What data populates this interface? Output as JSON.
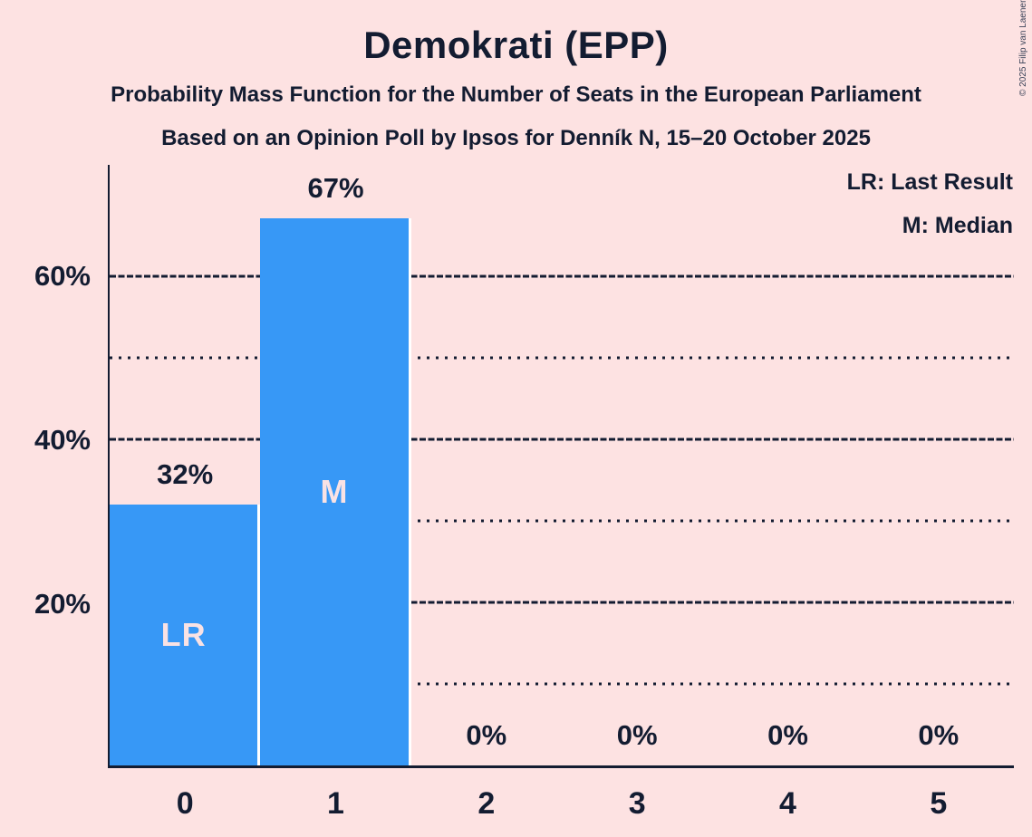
{
  "title": "Demokrati (EPP)",
  "subtitle_line1": "Probability Mass Function for the Number of Seats in the European Parliament",
  "subtitle_line2": "Based on an Opinion Poll by Ipsos for Denník N, 15–20 October 2025",
  "copyright": "© 2025 Filip van Laenen",
  "legend": {
    "lr_label": "LR: Last Result",
    "m_label": "M: Median"
  },
  "colors": {
    "background": "#fde2e2",
    "bar": "#3798f6",
    "text": "#131c31",
    "bar_annotation": "#f9e2e4",
    "bar_divider": "#ffffff"
  },
  "chart_data": {
    "type": "bar",
    "title": "Demokrati (EPP)",
    "xlabel": "",
    "ylabel": "",
    "categories": [
      "0",
      "1",
      "2",
      "3",
      "4",
      "5"
    ],
    "values": [
      32,
      67,
      0,
      0,
      0,
      0
    ],
    "value_labels": [
      "32%",
      "67%",
      "0%",
      "0%",
      "0%",
      "0%"
    ],
    "bar_annotations": [
      "LR",
      "M",
      "",
      "",
      "",
      ""
    ],
    "annotation_meanings": [
      "LR: Last Result",
      "M: Median"
    ],
    "ylim": [
      0,
      73.6
    ],
    "y_ticks": {
      "values": [
        20,
        40,
        60
      ],
      "labels": [
        "20%",
        "40%",
        "60%"
      ]
    },
    "y_major_gridlines": [
      20,
      40,
      60
    ],
    "y_minor_gridlines": [
      10,
      30,
      50
    ],
    "grid": true,
    "legend_position": "top-right"
  }
}
